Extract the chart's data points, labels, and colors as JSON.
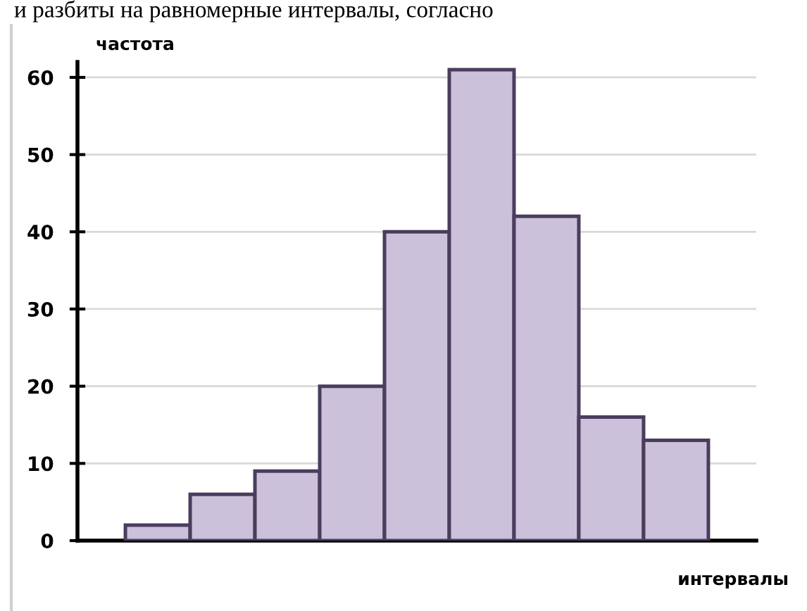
{
  "chart_data": {
    "type": "bar",
    "categories": [
      null,
      null,
      null,
      null,
      null,
      null,
      null,
      null,
      null
    ],
    "values": [
      2,
      6,
      9,
      20,
      40,
      61,
      42,
      16,
      13
    ],
    "color": "#cbc1da",
    "ylabel": "частота",
    "xlabel": "интервалы",
    "annotations": [
      "и разбиты на равномерные интервалы, согласно"
    ],
    "ylim": [
      0,
      62
    ],
    "yticks": [
      0,
      10,
      20,
      30,
      40,
      50,
      60
    ],
    "grid": "y"
  }
}
